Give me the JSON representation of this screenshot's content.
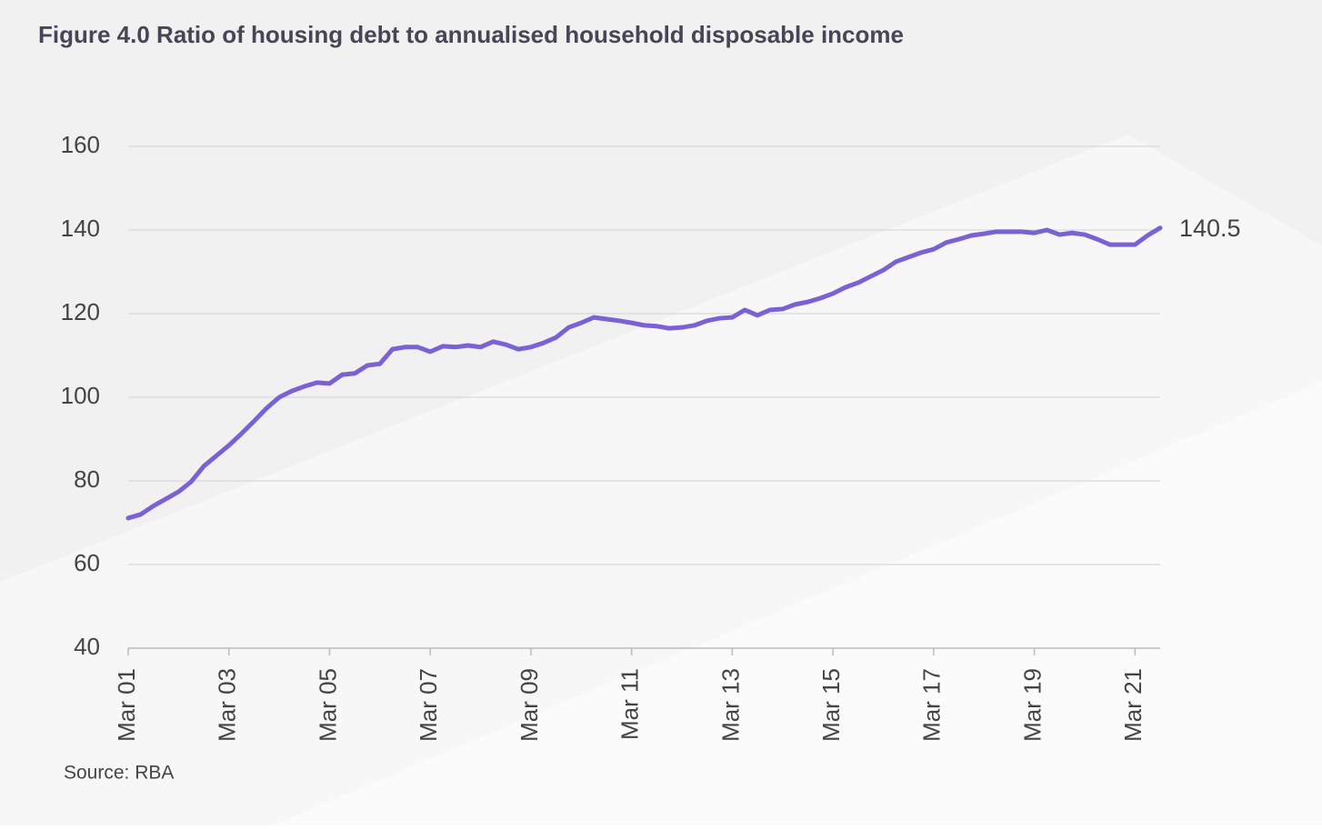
{
  "chart_data": {
    "type": "line",
    "title": "Figure 4.0 Ratio of housing debt to annualised household disposable income",
    "source": "Source: RBA",
    "categories": [
      "Mar 01",
      null,
      null,
      null,
      null,
      null,
      null,
      null,
      "Mar 03",
      null,
      null,
      null,
      null,
      null,
      null,
      null,
      "Mar 05",
      null,
      null,
      null,
      null,
      null,
      null,
      null,
      "Mar 07",
      null,
      null,
      null,
      null,
      null,
      null,
      null,
      "Mar 09",
      null,
      null,
      null,
      null,
      null,
      null,
      null,
      "Mar 11",
      null,
      null,
      null,
      null,
      null,
      null,
      null,
      "Mar 13",
      null,
      null,
      null,
      null,
      null,
      null,
      null,
      "Mar 15",
      null,
      null,
      null,
      null,
      null,
      null,
      null,
      "Mar 17",
      null,
      null,
      null,
      null,
      null,
      null,
      null,
      "Mar 19",
      null,
      null,
      null,
      null,
      null,
      null,
      null,
      "Mar 21",
      null,
      null
    ],
    "values": [
      71.1,
      72,
      74,
      75.7,
      77.4,
      79.8,
      83.5,
      86,
      88.5,
      91.3,
      94.3,
      97.4,
      100,
      101.5,
      102.6,
      103.5,
      103.3,
      105.4,
      105.7,
      107.6,
      108,
      111.5,
      112,
      112,
      110.9,
      112.2,
      112,
      112.4,
      112,
      113.3,
      112.6,
      111.5,
      112,
      113,
      114.3,
      116.7,
      117.8,
      119.1,
      118.7,
      118.3,
      117.8,
      117.2,
      117,
      116.5,
      116.7,
      117.2,
      118.3,
      118.9,
      119.1,
      120.9,
      119.6,
      120.9,
      121.1,
      122.2,
      122.8,
      123.7,
      124.8,
      126.3,
      127.4,
      128.9,
      130.4,
      132.4,
      133.5,
      134.6,
      135.4,
      137,
      137.8,
      138.7,
      139.1,
      139.6,
      139.6,
      139.6,
      139.3,
      140,
      138.9,
      139.3,
      138.9,
      137.8,
      136.5,
      136.5,
      136.5,
      138.7,
      140.5
    ],
    "color": "#7b61d6",
    "ylim": [
      40,
      160
    ],
    "yticks": [
      40,
      60,
      80,
      100,
      120,
      140,
      160
    ],
    "grid": true
  }
}
